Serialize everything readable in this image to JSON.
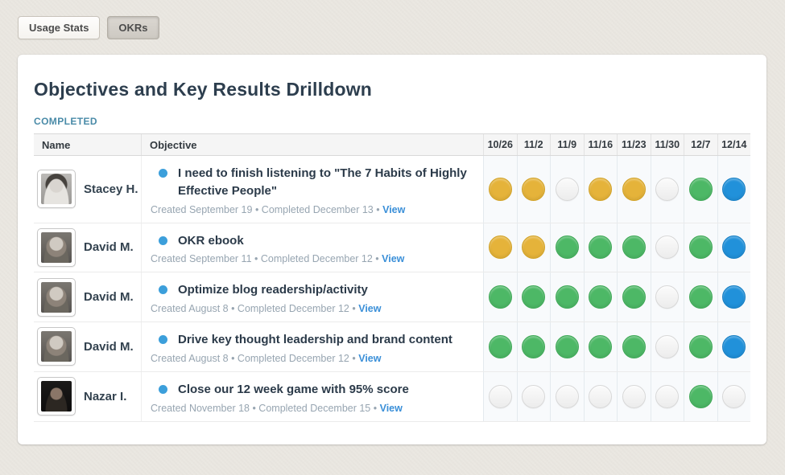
{
  "tabs": [
    {
      "label": "Usage Stats",
      "active": false
    },
    {
      "label": "OKRs",
      "active": true
    }
  ],
  "page": {
    "title": "Objectives and Key Results Drilldown",
    "section_label": "COMPLETED"
  },
  "table": {
    "name_header": "Name",
    "objective_header": "Objective",
    "dates": [
      "10/26",
      "11/2",
      "11/9",
      "11/16",
      "11/23",
      "11/30",
      "12/7",
      "12/14"
    ],
    "separator": "•",
    "rows": [
      {
        "name": "Stacey H.",
        "avatar": "stacey",
        "objective": "I need to finish listening to \"The 7 Habits of Highly Effective People\"",
        "created": "Created September 19",
        "completed": "Completed December 13",
        "view_label": "View",
        "statuses": [
          "yellow",
          "yellow",
          "empty",
          "yellow",
          "yellow",
          "empty",
          "green",
          "blue"
        ]
      },
      {
        "name": "David M.",
        "avatar": "david",
        "objective": "OKR ebook",
        "created": "Created September 11",
        "completed": "Completed December 12",
        "view_label": "View",
        "statuses": [
          "yellow",
          "yellow",
          "green",
          "green",
          "green",
          "empty",
          "green",
          "blue"
        ]
      },
      {
        "name": "David M.",
        "avatar": "david",
        "objective": "Optimize blog readership/activity",
        "created": "Created August 8",
        "completed": "Completed December 12",
        "view_label": "View",
        "statuses": [
          "green",
          "green",
          "green",
          "green",
          "green",
          "empty",
          "green",
          "blue"
        ]
      },
      {
        "name": "David M.",
        "avatar": "david",
        "objective": "Drive key thought leadership and brand content",
        "created": "Created August 8",
        "completed": "Completed December 12",
        "view_label": "View",
        "statuses": [
          "green",
          "green",
          "green",
          "green",
          "green",
          "empty",
          "green",
          "blue"
        ]
      },
      {
        "name": "Nazar I.",
        "avatar": "nazar",
        "objective": "Close our 12 week game with 95% score",
        "created": "Created November 18",
        "completed": "Completed December 15",
        "view_label": "View",
        "statuses": [
          "empty",
          "empty",
          "empty",
          "empty",
          "empty",
          "empty",
          "green",
          "empty"
        ]
      }
    ]
  },
  "colors": {
    "yellow": {
      "fill": "#e5b33a",
      "border": "#d2a226"
    },
    "green": {
      "fill": "#4db866",
      "border": "#3fa957"
    },
    "blue": {
      "fill": "#2191da",
      "border": "#177fc4"
    },
    "empty": {
      "fill": "#f2f2f2",
      "border": "#d8d8d8"
    },
    "bullet_dot": "#3c9fdb",
    "link": "#3a8fd8",
    "section_label": "#4a8ba8"
  }
}
